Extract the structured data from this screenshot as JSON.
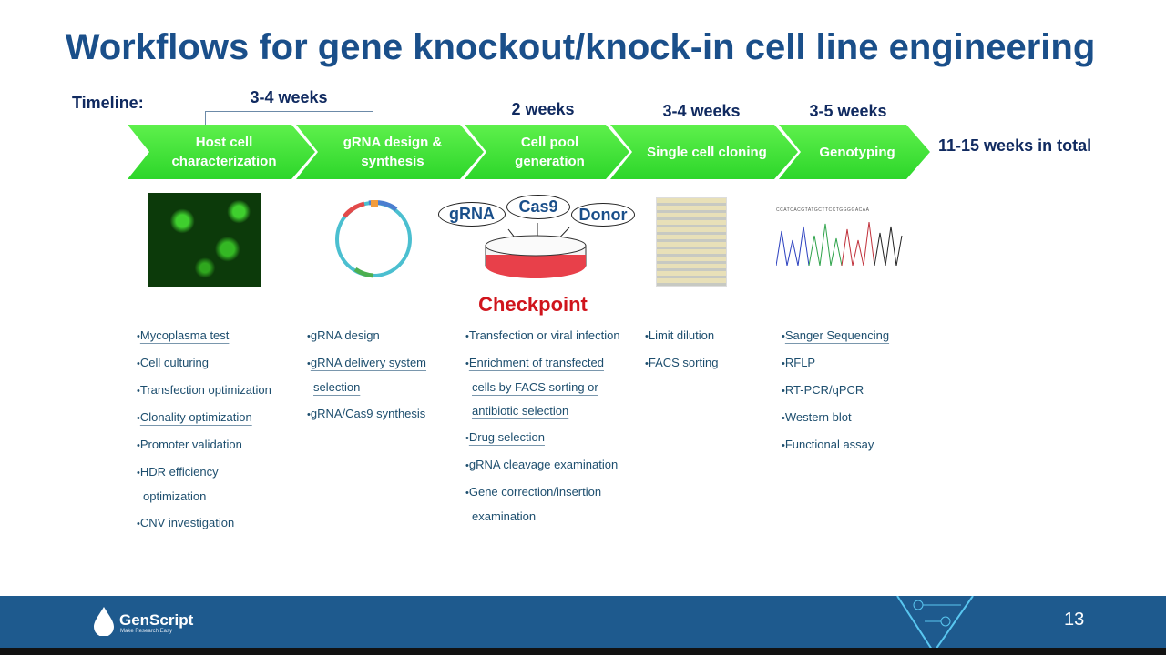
{
  "title": "Workflows for gene knockout/knock-in cell line engineering",
  "timeline": {
    "label": "Timeline:",
    "durations": [
      "3-4 weeks",
      "2 weeks",
      "3-4 weeks",
      "3-5 weeks"
    ],
    "total": "11-15 weeks in total",
    "steps": [
      "Host cell characterization",
      "gRNA design & synthesis",
      "Cell pool generation",
      "Single cell cloning",
      "Genotyping"
    ],
    "step_color": "#3ee234"
  },
  "illustration": {
    "bubbles": [
      "gRNA",
      "Cas9",
      "Donor"
    ],
    "checkpoint": "Checkpoint",
    "sequence": "CCATCACGTATGCTTCCTGGGGACAA"
  },
  "lists": [
    [
      {
        "t": "Mycoplasma test",
        "u": true
      },
      {
        "t": "Cell culturing",
        "u": false
      },
      {
        "t": "Transfection optimization",
        "u": true
      },
      {
        "t": "Clonality optimization",
        "u": true
      },
      {
        "t": "Promoter validation",
        "u": false
      },
      {
        "t": "HDR efficiency optimization",
        "u": false
      },
      {
        "t": "CNV investigation",
        "u": false
      }
    ],
    [
      {
        "t": "gRNA design",
        "u": false
      },
      {
        "t": "gRNA delivery system selection",
        "u": true
      },
      {
        "t": "gRNA/Cas9 synthesis",
        "u": false
      }
    ],
    [
      {
        "t": "Transfection or viral infection",
        "u": false
      },
      {
        "t": "Enrichment of transfected cells by FACS sorting or antibiotic selection",
        "u": true
      },
      {
        "t": "Drug selection",
        "u": true
      },
      {
        "t": "gRNA cleavage examination",
        "u": false
      },
      {
        "t": "Gene correction/insertion examination",
        "u": false
      }
    ],
    [
      {
        "t": "Limit dilution",
        "u": false
      },
      {
        "t": "FACS sorting",
        "u": false
      }
    ],
    [
      {
        "t": "Sanger Sequencing",
        "u": true
      },
      {
        "t": "RFLP",
        "u": false
      },
      {
        "t": "RT-PCR/qPCR",
        "u": false
      },
      {
        "t": "Western blot",
        "u": false
      },
      {
        "t": "Functional assay",
        "u": false
      }
    ]
  ],
  "footer": {
    "brand": "GenScript",
    "tagline": "Make Research Easy",
    "page": "13"
  }
}
